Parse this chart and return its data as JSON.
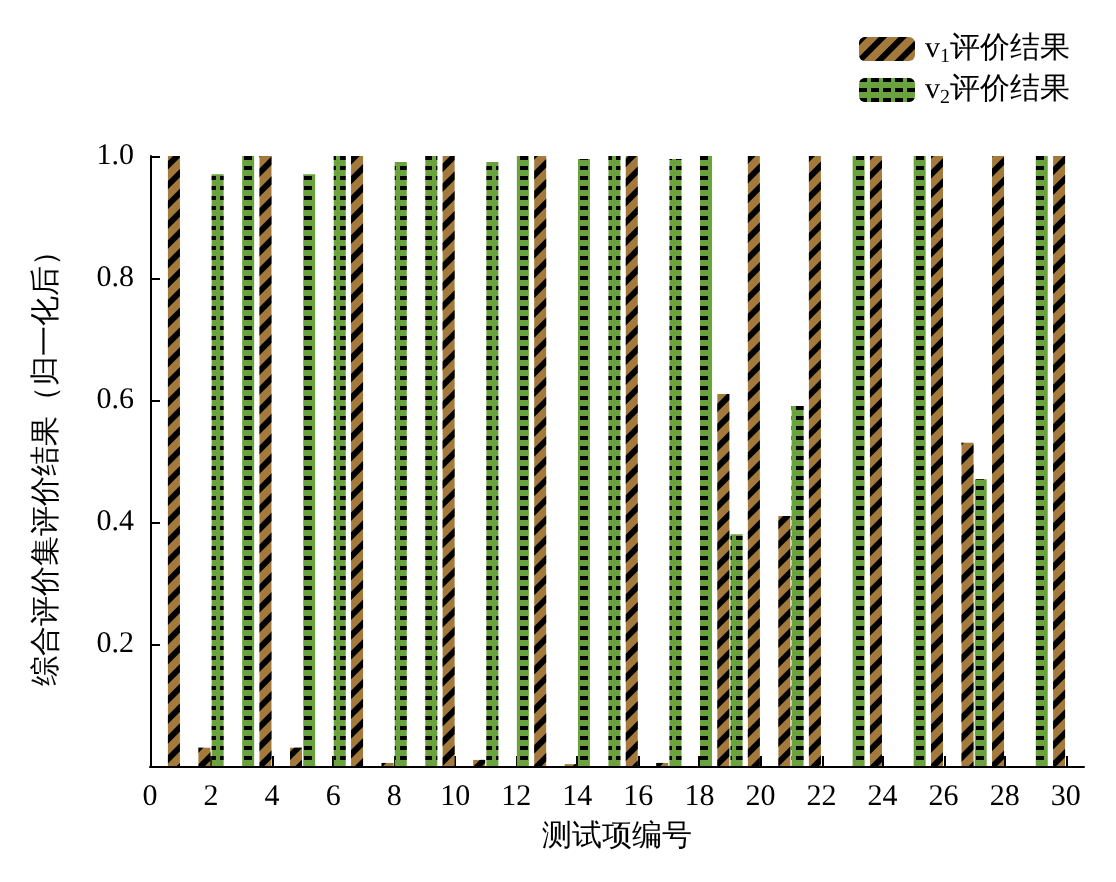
{
  "chart_data": {
    "type": "bar",
    "xlabel": "测试项编号",
    "ylabel": "综合评价集评价结果（归一化后）",
    "x": [
      1,
      2,
      3,
      4,
      5,
      6,
      7,
      8,
      9,
      10,
      11,
      12,
      13,
      14,
      15,
      16,
      17,
      18,
      19,
      20,
      21,
      22,
      23,
      24,
      25,
      26,
      27,
      28,
      29,
      30
    ],
    "series": [
      {
        "name": "v$_{1}$评价结果",
        "color": "#a37a3c",
        "values": [
          1.0,
          0.03,
          0,
          1.0,
          0.03,
          0,
          1.0,
          0.005,
          0,
          1.0,
          0.01,
          0,
          1.0,
          0.003,
          0,
          1.0,
          0.005,
          0,
          0.61,
          1.0,
          0.41,
          1.0,
          0,
          1.0,
          0,
          1.0,
          0.53,
          1.0,
          0,
          1.0
        ]
      },
      {
        "name": "v$_{2}$评价结果",
        "color": "#6aa33e",
        "values": [
          0,
          0.97,
          1.0,
          0,
          0.97,
          1.0,
          0,
          0.99,
          1.0,
          0,
          0.99,
          1.0,
          0,
          0.995,
          1.0,
          0,
          0.995,
          1.0,
          0.38,
          0,
          0.59,
          0,
          1.0,
          0,
          1.0,
          0,
          0.47,
          0,
          1.0,
          0
        ]
      }
    ],
    "xlim": [
      0,
      30.6
    ],
    "xticks": [
      0,
      2,
      4,
      6,
      8,
      10,
      12,
      14,
      16,
      18,
      20,
      22,
      24,
      26,
      28,
      30
    ],
    "ylim": [
      0,
      1
    ],
    "yticks": [
      {
        "value": 0,
        "label": null
      },
      0.2,
      0.4,
      0.6,
      0.8,
      {
        "value": 1,
        "label": "1.0"
      }
    ],
    "legend": "top right"
  }
}
